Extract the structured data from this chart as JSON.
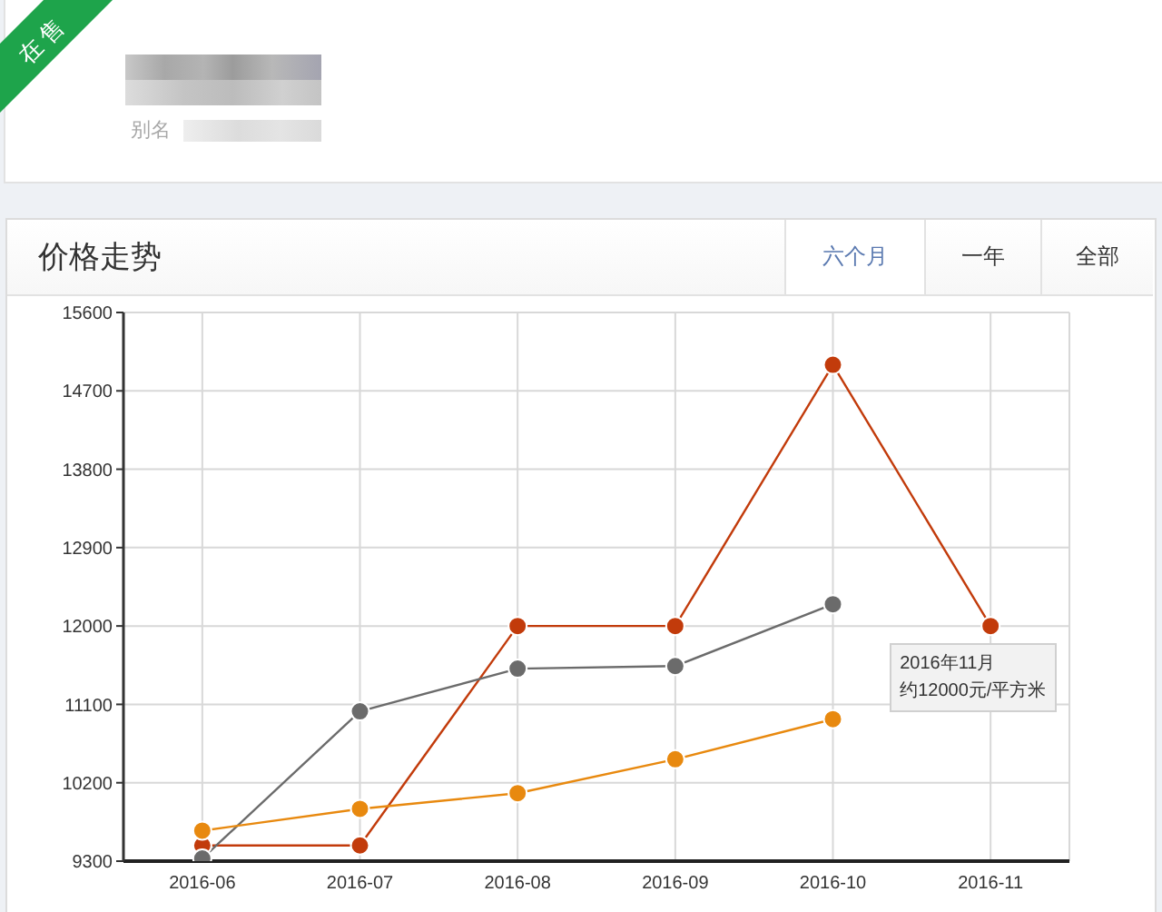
{
  "chart_data": {
    "type": "line",
    "title": "价格走势",
    "categories": [
      "2016-06",
      "2016-07",
      "2016-08",
      "2016-09",
      "2016-10",
      "2016-11"
    ],
    "series": [
      {
        "color": "#c23b0b",
        "values": [
          9480,
          9480,
          12000,
          12000,
          15000,
          12000
        ]
      },
      {
        "color": "#6b6b6b",
        "values": [
          9330,
          11020,
          11510,
          11540,
          12250,
          null
        ]
      },
      {
        "color": "#e8890f",
        "values": [
          9650,
          9900,
          10080,
          10470,
          10930,
          null
        ]
      }
    ],
    "ylim": [
      9300,
      15600
    ],
    "yticks": [
      9300,
      10200,
      11100,
      12000,
      12900,
      13800,
      14700,
      15600
    ],
    "grid": true,
    "marker": "circle",
    "annotations": [
      {
        "text": "2016年11月",
        "x": "2016-11",
        "y": 12000
      },
      "约12000元/平方米",
      "在售",
      "别名",
      "六个月",
      "一年",
      "全部"
    ]
  }
}
